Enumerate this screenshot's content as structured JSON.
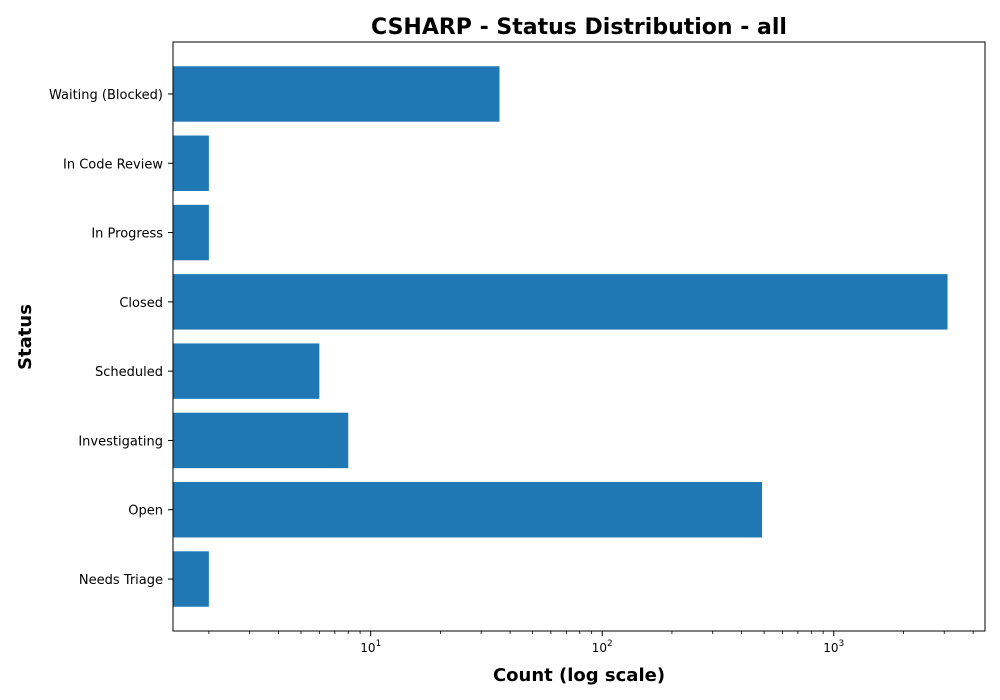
{
  "chart_data": {
    "type": "bar",
    "orientation": "horizontal",
    "title": "CSHARP - Status Distribution - all",
    "xlabel": "Count (log scale)",
    "ylabel": "Status",
    "x_scale": "log",
    "xlim": [
      1.4,
      4500
    ],
    "x_ticks": [
      {
        "value": 10,
        "base": "10",
        "exp": "1"
      },
      {
        "value": 100,
        "base": "10",
        "exp": "2"
      },
      {
        "value": 1000,
        "base": "10",
        "exp": "3"
      }
    ],
    "categories": [
      "Needs Triage",
      "Open",
      "Investigating",
      "Scheduled",
      "Closed",
      "In Progress",
      "In Code Review",
      "Waiting (Blocked)"
    ],
    "values": [
      2,
      490,
      8,
      6,
      3100,
      2,
      2,
      36
    ],
    "bar_color": "#1f77b4",
    "grid": false
  }
}
